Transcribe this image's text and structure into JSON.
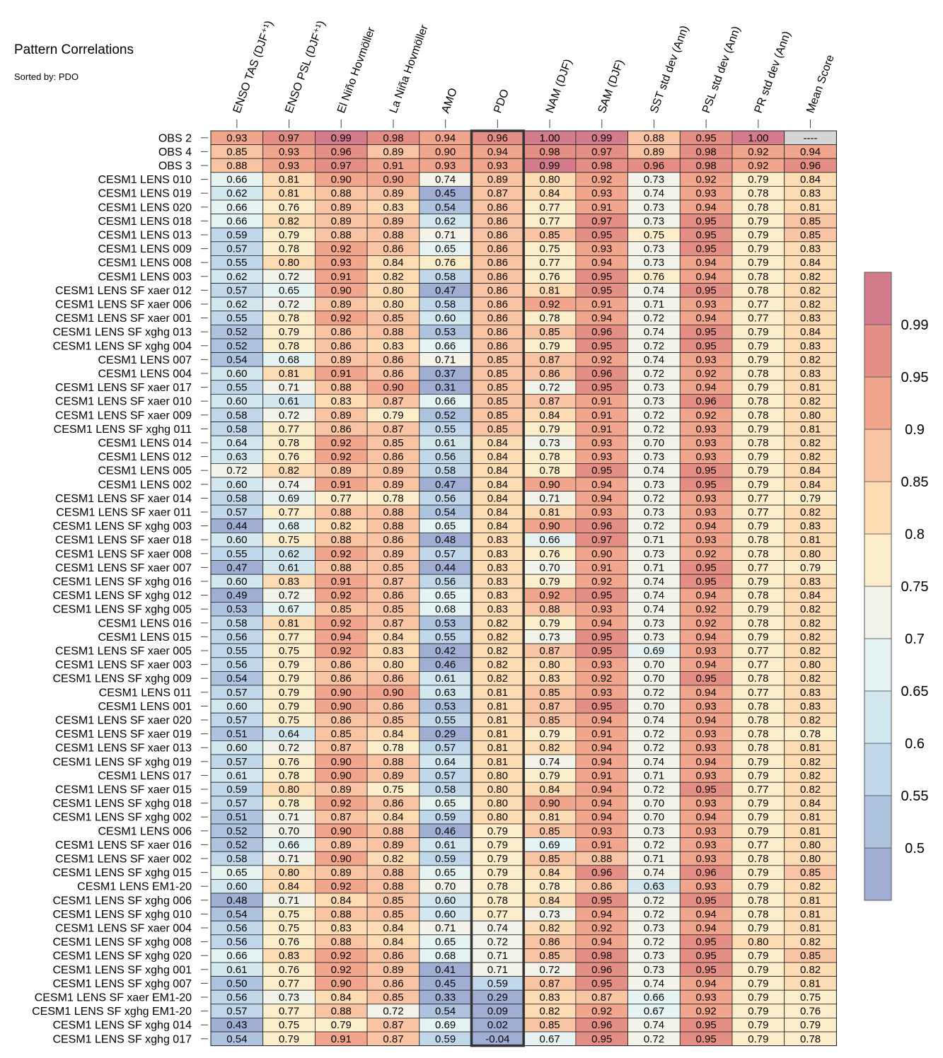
{
  "title": "Pattern Correlations",
  "subtitle": "Sorted by: PDO",
  "chart_data": {
    "type": "heatmap",
    "columns": [
      "ENSO TAS (DJF⁺¹)",
      "ENSO PSL (DJF⁺¹)",
      "El Niño Hovmöller",
      "La Niña Hovmöller",
      "AMO",
      "PDO",
      "NAM (DJF)",
      "SAM (DJF)",
      "SST std dev (Ann)",
      "PSL std dev (Ann)",
      "PR std dev (Ann)",
      "Mean Score"
    ],
    "highlighted_column": "PDO",
    "missing_label": "----",
    "rows": [
      {
        "name": "OBS 2",
        "values": [
          0.93,
          0.97,
          0.99,
          0.98,
          0.94,
          0.96,
          1.0,
          0.99,
          0.88,
          0.95,
          1.0,
          null
        ]
      },
      {
        "name": "OBS 4",
        "values": [
          0.85,
          0.93,
          0.96,
          0.89,
          0.9,
          0.94,
          0.98,
          0.97,
          0.89,
          0.98,
          0.92,
          0.94
        ]
      },
      {
        "name": "OBS 3",
        "values": [
          0.88,
          0.93,
          0.97,
          0.91,
          0.93,
          0.93,
          0.99,
          0.98,
          0.96,
          0.98,
          0.92,
          0.96
        ]
      },
      {
        "name": "CESM1 LENS 010",
        "values": [
          0.66,
          0.81,
          0.9,
          0.9,
          0.74,
          0.89,
          0.8,
          0.92,
          0.73,
          0.92,
          0.79,
          0.84
        ]
      },
      {
        "name": "CESM1 LENS 019",
        "values": [
          0.62,
          0.81,
          0.88,
          0.89,
          0.45,
          0.87,
          0.84,
          0.93,
          0.74,
          0.93,
          0.78,
          0.83
        ]
      },
      {
        "name": "CESM1 LENS 020",
        "values": [
          0.66,
          0.76,
          0.89,
          0.83,
          0.54,
          0.86,
          0.77,
          0.91,
          0.73,
          0.94,
          0.78,
          0.81
        ]
      },
      {
        "name": "CESM1 LENS 018",
        "values": [
          0.66,
          0.82,
          0.89,
          0.89,
          0.62,
          0.86,
          0.77,
          0.97,
          0.73,
          0.95,
          0.79,
          0.85
        ]
      },
      {
        "name": "CESM1 LENS 013",
        "values": [
          0.59,
          0.79,
          0.88,
          0.88,
          0.71,
          0.86,
          0.85,
          0.95,
          0.75,
          0.95,
          0.79,
          0.85
        ]
      },
      {
        "name": "CESM1 LENS 009",
        "values": [
          0.57,
          0.78,
          0.92,
          0.86,
          0.65,
          0.86,
          0.75,
          0.93,
          0.73,
          0.95,
          0.79,
          0.83
        ]
      },
      {
        "name": "CESM1 LENS 008",
        "values": [
          0.55,
          0.8,
          0.93,
          0.84,
          0.76,
          0.86,
          0.77,
          0.94,
          0.73,
          0.94,
          0.79,
          0.84
        ]
      },
      {
        "name": "CESM1 LENS 003",
        "values": [
          0.62,
          0.72,
          0.91,
          0.82,
          0.58,
          0.86,
          0.76,
          0.95,
          0.76,
          0.94,
          0.78,
          0.82
        ]
      },
      {
        "name": "CESM1 LENS SF xaer 012",
        "values": [
          0.57,
          0.65,
          0.9,
          0.8,
          0.47,
          0.86,
          0.81,
          0.95,
          0.74,
          0.95,
          0.78,
          0.82
        ]
      },
      {
        "name": "CESM1 LENS SF xaer 006",
        "values": [
          0.62,
          0.72,
          0.89,
          0.8,
          0.58,
          0.86,
          0.92,
          0.91,
          0.71,
          0.93,
          0.77,
          0.82
        ]
      },
      {
        "name": "CESM1 LENS SF xaer 001",
        "values": [
          0.55,
          0.78,
          0.92,
          0.85,
          0.6,
          0.86,
          0.78,
          0.94,
          0.72,
          0.94,
          0.77,
          0.83
        ]
      },
      {
        "name": "CESM1 LENS SF xghg 013",
        "values": [
          0.52,
          0.79,
          0.86,
          0.88,
          0.53,
          0.86,
          0.85,
          0.96,
          0.74,
          0.95,
          0.79,
          0.84
        ]
      },
      {
        "name": "CESM1 LENS SF xghg 004",
        "values": [
          0.52,
          0.78,
          0.86,
          0.83,
          0.66,
          0.86,
          0.79,
          0.95,
          0.72,
          0.95,
          0.79,
          0.83
        ]
      },
      {
        "name": "CESM1 LENS 007",
        "values": [
          0.54,
          0.68,
          0.89,
          0.86,
          0.71,
          0.85,
          0.87,
          0.92,
          0.74,
          0.93,
          0.79,
          0.82
        ]
      },
      {
        "name": "CESM1 LENS 004",
        "values": [
          0.6,
          0.81,
          0.91,
          0.86,
          0.37,
          0.85,
          0.86,
          0.96,
          0.72,
          0.92,
          0.78,
          0.83
        ]
      },
      {
        "name": "CESM1 LENS SF xaer 017",
        "values": [
          0.55,
          0.71,
          0.88,
          0.9,
          0.31,
          0.85,
          0.72,
          0.95,
          0.73,
          0.94,
          0.79,
          0.81
        ]
      },
      {
        "name": "CESM1 LENS SF xaer 010",
        "values": [
          0.6,
          0.61,
          0.83,
          0.87,
          0.66,
          0.85,
          0.87,
          0.91,
          0.73,
          0.96,
          0.78,
          0.82
        ]
      },
      {
        "name": "CESM1 LENS SF xaer 009",
        "values": [
          0.58,
          0.72,
          0.89,
          0.79,
          0.52,
          0.85,
          0.84,
          0.91,
          0.72,
          0.92,
          0.78,
          0.8
        ]
      },
      {
        "name": "CESM1 LENS SF xghg 011",
        "values": [
          0.58,
          0.77,
          0.86,
          0.87,
          0.55,
          0.85,
          0.79,
          0.91,
          0.72,
          0.93,
          0.79,
          0.81
        ]
      },
      {
        "name": "CESM1 LENS 014",
        "values": [
          0.64,
          0.78,
          0.92,
          0.85,
          0.61,
          0.84,
          0.73,
          0.93,
          0.7,
          0.93,
          0.78,
          0.82
        ]
      },
      {
        "name": "CESM1 LENS 012",
        "values": [
          0.63,
          0.76,
          0.92,
          0.86,
          0.56,
          0.84,
          0.78,
          0.93,
          0.73,
          0.93,
          0.79,
          0.82
        ]
      },
      {
        "name": "CESM1 LENS 005",
        "values": [
          0.72,
          0.82,
          0.89,
          0.89,
          0.58,
          0.84,
          0.78,
          0.95,
          0.74,
          0.95,
          0.79,
          0.84
        ]
      },
      {
        "name": "CESM1 LENS 002",
        "values": [
          0.6,
          0.74,
          0.91,
          0.89,
          0.47,
          0.84,
          0.9,
          0.94,
          0.73,
          0.95,
          0.79,
          0.84
        ]
      },
      {
        "name": "CESM1 LENS SF xaer 014",
        "values": [
          0.58,
          0.69,
          0.77,
          0.78,
          0.56,
          0.84,
          0.71,
          0.94,
          0.72,
          0.93,
          0.77,
          0.79
        ]
      },
      {
        "name": "CESM1 LENS SF xaer 011",
        "values": [
          0.57,
          0.77,
          0.88,
          0.88,
          0.54,
          0.84,
          0.81,
          0.93,
          0.73,
          0.93,
          0.77,
          0.82
        ]
      },
      {
        "name": "CESM1 LENS SF xghg 003",
        "values": [
          0.44,
          0.68,
          0.82,
          0.88,
          0.65,
          0.84,
          0.9,
          0.96,
          0.72,
          0.94,
          0.79,
          0.83
        ]
      },
      {
        "name": "CESM1 LENS SF xaer 018",
        "values": [
          0.6,
          0.75,
          0.88,
          0.86,
          0.48,
          0.83,
          0.66,
          0.97,
          0.71,
          0.93,
          0.78,
          0.81
        ]
      },
      {
        "name": "CESM1 LENS SF xaer 008",
        "values": [
          0.55,
          0.62,
          0.92,
          0.89,
          0.57,
          0.83,
          0.76,
          0.9,
          0.73,
          0.92,
          0.78,
          0.8
        ]
      },
      {
        "name": "CESM1 LENS SF xaer 007",
        "values": [
          0.47,
          0.61,
          0.88,
          0.85,
          0.44,
          0.83,
          0.7,
          0.91,
          0.71,
          0.95,
          0.77,
          0.79
        ]
      },
      {
        "name": "CESM1 LENS SF xghg 016",
        "values": [
          0.6,
          0.83,
          0.91,
          0.87,
          0.56,
          0.83,
          0.79,
          0.92,
          0.74,
          0.95,
          0.79,
          0.83
        ]
      },
      {
        "name": "CESM1 LENS SF xghg 012",
        "values": [
          0.49,
          0.72,
          0.92,
          0.86,
          0.65,
          0.83,
          0.92,
          0.95,
          0.74,
          0.94,
          0.78,
          0.84
        ]
      },
      {
        "name": "CESM1 LENS SF xghg 005",
        "values": [
          0.53,
          0.67,
          0.85,
          0.85,
          0.68,
          0.83,
          0.88,
          0.93,
          0.74,
          0.92,
          0.79,
          0.82
        ]
      },
      {
        "name": "CESM1 LENS 016",
        "values": [
          0.58,
          0.81,
          0.92,
          0.87,
          0.53,
          0.82,
          0.79,
          0.94,
          0.73,
          0.92,
          0.78,
          0.82
        ]
      },
      {
        "name": "CESM1 LENS 015",
        "values": [
          0.56,
          0.77,
          0.94,
          0.84,
          0.55,
          0.82,
          0.73,
          0.95,
          0.73,
          0.94,
          0.79,
          0.82
        ]
      },
      {
        "name": "CESM1 LENS SF xaer 005",
        "values": [
          0.55,
          0.75,
          0.92,
          0.83,
          0.42,
          0.82,
          0.87,
          0.95,
          0.69,
          0.93,
          0.77,
          0.82
        ]
      },
      {
        "name": "CESM1 LENS SF xaer 003",
        "values": [
          0.56,
          0.79,
          0.86,
          0.8,
          0.46,
          0.82,
          0.8,
          0.93,
          0.7,
          0.94,
          0.77,
          0.8
        ]
      },
      {
        "name": "CESM1 LENS SF xghg 009",
        "values": [
          0.54,
          0.79,
          0.86,
          0.86,
          0.61,
          0.82,
          0.83,
          0.92,
          0.7,
          0.95,
          0.78,
          0.82
        ]
      },
      {
        "name": "CESM1 LENS 011",
        "values": [
          0.57,
          0.79,
          0.9,
          0.9,
          0.63,
          0.81,
          0.85,
          0.93,
          0.72,
          0.94,
          0.77,
          0.83
        ]
      },
      {
        "name": "CESM1 LENS 001",
        "values": [
          0.6,
          0.79,
          0.9,
          0.86,
          0.53,
          0.81,
          0.87,
          0.95,
          0.7,
          0.93,
          0.78,
          0.83
        ]
      },
      {
        "name": "CESM1 LENS SF xaer 020",
        "values": [
          0.57,
          0.75,
          0.86,
          0.85,
          0.55,
          0.81,
          0.85,
          0.94,
          0.74,
          0.94,
          0.78,
          0.82
        ]
      },
      {
        "name": "CESM1 LENS SF xaer 019",
        "values": [
          0.51,
          0.64,
          0.85,
          0.84,
          0.29,
          0.81,
          0.79,
          0.91,
          0.72,
          0.93,
          0.78,
          0.78
        ]
      },
      {
        "name": "CESM1 LENS SF xaer 013",
        "values": [
          0.6,
          0.72,
          0.87,
          0.78,
          0.57,
          0.81,
          0.82,
          0.94,
          0.72,
          0.93,
          0.78,
          0.81
        ]
      },
      {
        "name": "CESM1 LENS SF xghg 019",
        "values": [
          0.57,
          0.76,
          0.9,
          0.88,
          0.64,
          0.81,
          0.74,
          0.94,
          0.74,
          0.94,
          0.79,
          0.82
        ]
      },
      {
        "name": "CESM1 LENS 017",
        "values": [
          0.61,
          0.78,
          0.9,
          0.89,
          0.57,
          0.8,
          0.79,
          0.91,
          0.71,
          0.93,
          0.79,
          0.82
        ]
      },
      {
        "name": "CESM1 LENS SF xaer 015",
        "values": [
          0.59,
          0.8,
          0.89,
          0.75,
          0.58,
          0.8,
          0.84,
          0.94,
          0.72,
          0.95,
          0.77,
          0.82
        ]
      },
      {
        "name": "CESM1 LENS SF xghg 018",
        "values": [
          0.57,
          0.78,
          0.92,
          0.86,
          0.65,
          0.8,
          0.9,
          0.94,
          0.7,
          0.93,
          0.79,
          0.84
        ]
      },
      {
        "name": "CESM1 LENS SF xghg 002",
        "values": [
          0.51,
          0.71,
          0.87,
          0.84,
          0.59,
          0.8,
          0.81,
          0.94,
          0.7,
          0.94,
          0.79,
          0.81
        ]
      },
      {
        "name": "CESM1 LENS 006",
        "values": [
          0.52,
          0.7,
          0.9,
          0.88,
          0.46,
          0.79,
          0.85,
          0.93,
          0.73,
          0.93,
          0.79,
          0.81
        ]
      },
      {
        "name": "CESM1 LENS SF xaer 016",
        "values": [
          0.52,
          0.66,
          0.89,
          0.89,
          0.61,
          0.79,
          0.69,
          0.91,
          0.72,
          0.93,
          0.77,
          0.8
        ]
      },
      {
        "name": "CESM1 LENS SF xaer 002",
        "values": [
          0.58,
          0.71,
          0.9,
          0.82,
          0.59,
          0.79,
          0.85,
          0.88,
          0.71,
          0.93,
          0.78,
          0.8
        ]
      },
      {
        "name": "CESM1 LENS SF xghg 015",
        "values": [
          0.65,
          0.8,
          0.89,
          0.88,
          0.65,
          0.79,
          0.84,
          0.96,
          0.74,
          0.96,
          0.79,
          0.85
        ]
      },
      {
        "name": "CESM1 LENS EM1-20",
        "values": [
          0.6,
          0.84,
          0.92,
          0.88,
          0.7,
          0.78,
          0.78,
          0.86,
          0.63,
          0.93,
          0.79,
          0.82
        ]
      },
      {
        "name": "CESM1 LENS SF xghg 006",
        "values": [
          0.48,
          0.71,
          0.84,
          0.85,
          0.6,
          0.78,
          0.84,
          0.95,
          0.72,
          0.95,
          0.78,
          0.81
        ]
      },
      {
        "name": "CESM1 LENS SF xghg 010",
        "values": [
          0.54,
          0.75,
          0.88,
          0.85,
          0.6,
          0.77,
          0.73,
          0.94,
          0.72,
          0.94,
          0.78,
          0.81
        ]
      },
      {
        "name": "CESM1 LENS SF xaer 004",
        "values": [
          0.56,
          0.75,
          0.83,
          0.84,
          0.71,
          0.74,
          0.82,
          0.92,
          0.73,
          0.94,
          0.79,
          0.81
        ]
      },
      {
        "name": "CESM1 LENS SF xghg 008",
        "values": [
          0.56,
          0.76,
          0.88,
          0.84,
          0.65,
          0.72,
          0.86,
          0.94,
          0.72,
          0.95,
          0.8,
          0.82
        ]
      },
      {
        "name": "CESM1 LENS SF xghg 020",
        "values": [
          0.66,
          0.83,
          0.92,
          0.86,
          0.68,
          0.71,
          0.85,
          0.98,
          0.73,
          0.95,
          0.79,
          0.85
        ]
      },
      {
        "name": "CESM1 LENS SF xghg 001",
        "values": [
          0.61,
          0.76,
          0.92,
          0.89,
          0.41,
          0.71,
          0.72,
          0.96,
          0.73,
          0.95,
          0.79,
          0.82
        ]
      },
      {
        "name": "CESM1 LENS SF xghg 007",
        "values": [
          0.5,
          0.77,
          0.9,
          0.86,
          0.45,
          0.59,
          0.87,
          0.95,
          0.74,
          0.94,
          0.79,
          0.81
        ]
      },
      {
        "name": "CESM1 LENS SF xaer EM1-20",
        "values": [
          0.56,
          0.73,
          0.84,
          0.85,
          0.33,
          0.29,
          0.83,
          0.87,
          0.66,
          0.93,
          0.79,
          0.75
        ]
      },
      {
        "name": "CESM1 LENS SF xghg EM1-20",
        "values": [
          0.57,
          0.77,
          0.88,
          0.72,
          0.54,
          0.09,
          0.82,
          0.92,
          0.67,
          0.92,
          0.79,
          0.76
        ]
      },
      {
        "name": "CESM1 LENS SF xghg 014",
        "values": [
          0.43,
          0.75,
          0.79,
          0.87,
          0.69,
          0.02,
          0.85,
          0.96,
          0.74,
          0.95,
          0.79,
          0.79
        ]
      },
      {
        "name": "CESM1 LENS SF xghg 017",
        "values": [
          0.54,
          0.79,
          0.91,
          0.87,
          0.59,
          -0.04,
          0.67,
          0.95,
          0.72,
          0.95,
          0.79,
          0.78
        ]
      }
    ],
    "colorbar": {
      "labels": [
        "0.99",
        "0.95",
        "0.9",
        "0.85",
        "0.8",
        "0.75",
        "0.7",
        "0.65",
        "0.6",
        "0.55",
        "0.5"
      ],
      "bin_edges": [
        0.5,
        0.55,
        0.6,
        0.65,
        0.7,
        0.75,
        0.8,
        0.85,
        0.9,
        0.95,
        0.99
      ],
      "colors": [
        "#a0aed3",
        "#aec3de",
        "#c0d8e9",
        "#d3e7ef",
        "#e6f3f3",
        "#f3f3ea",
        "#fdeecb",
        "#fddcb3",
        "#f9c4a3",
        "#f0a58c",
        "#e48e86",
        "#d47c8c"
      ],
      "missing_color": "#d6d6d6",
      "highlight_border_color": "#333333"
    }
  }
}
